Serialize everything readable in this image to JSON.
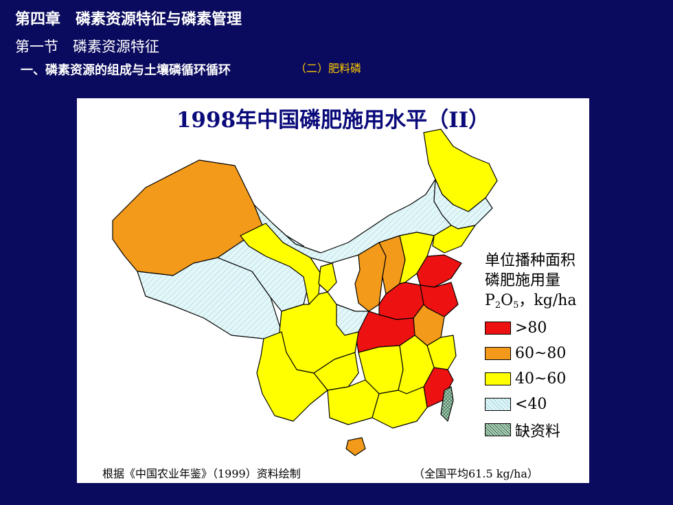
{
  "header": {
    "chapter": "第四章　磷素资源特征与磷素管理",
    "section": "第一节　磷素资源特征",
    "subsection": "一、磷素资源的组成与土壤磷循环循环",
    "subsubsection": "（二）肥料磷"
  },
  "map": {
    "title": "1998年中国磷肥施用水平（II）",
    "legend": {
      "title_line1": "单位播种面积",
      "title_line2": "磷肥施用量",
      "unit_p": "P",
      "unit_sub1": "2",
      "unit_o": "O",
      "unit_sub2": "5",
      "unit_rest": "，kg/ha",
      "items": [
        {
          "label": ">80",
          "color": "#ee1111"
        },
        {
          "label": "60~80",
          "color": "#f39a1a"
        },
        {
          "label": "40~60",
          "color": "#ffff00"
        },
        {
          "label": "<40",
          "color": "#dff5f8"
        },
        {
          "label": "缺资料",
          "color": "#8fb59e"
        }
      ]
    },
    "source": "根据《中国农业年鉴》（1999）资料绘制",
    "national_average": "（全国平均61.5 kg/ha）"
  }
}
